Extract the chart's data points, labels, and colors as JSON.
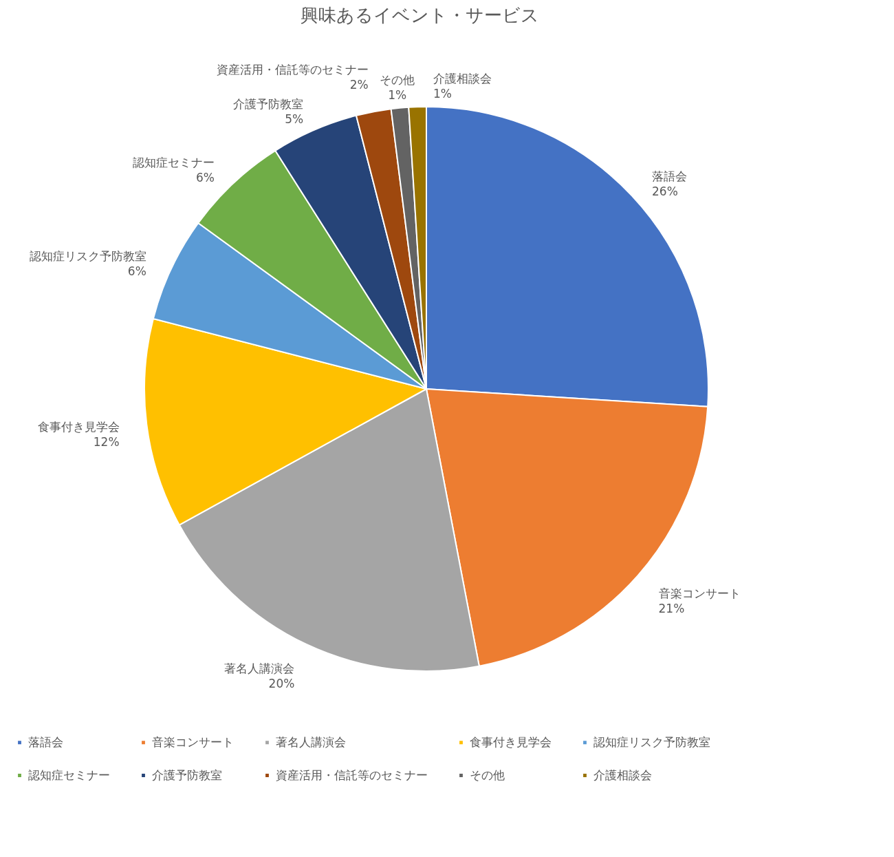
{
  "chart_data": {
    "type": "pie",
    "title": "興味あるイベント・サービス",
    "categories": [
      "落語会",
      "音楽コンサート",
      "著名人講演会",
      "食事付き見学会",
      "認知症リスク予防教室",
      "認知症セミナー",
      "介護予防教室",
      "資産活用・信託等のセミナー",
      "その他",
      "介護相談会"
    ],
    "values": [
      26,
      21,
      20,
      12,
      6,
      6,
      5,
      2,
      1,
      1
    ],
    "value_labels": [
      "26%",
      "21%",
      "20%",
      "12%",
      "6%",
      "6%",
      "5%",
      "2%",
      "1%",
      "1%"
    ],
    "colors": [
      "#4472c4",
      "#ed7d31",
      "#a5a5a5",
      "#ffc000",
      "#5b9bd5",
      "#70ad47",
      "#264478",
      "#9e480e",
      "#636363",
      "#997300"
    ],
    "legend": "bottom"
  }
}
